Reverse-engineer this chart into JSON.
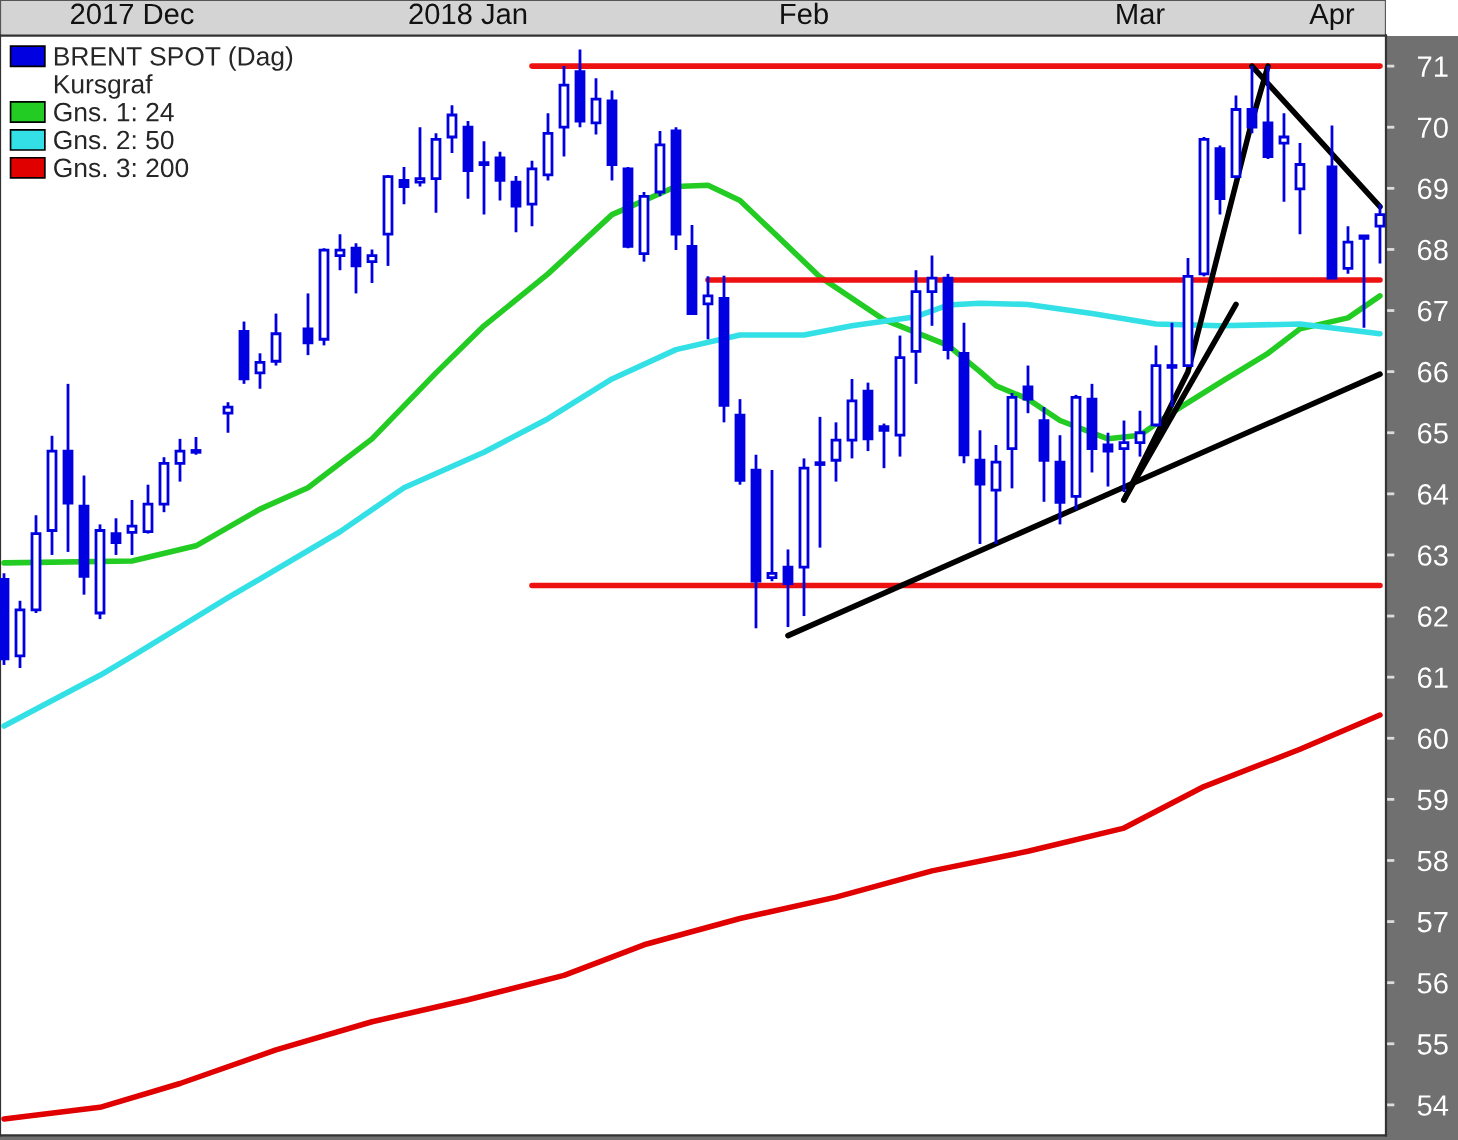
{
  "chart_data": {
    "type": "candlestick",
    "categories": [
      null,
      null,
      null,
      null,
      null,
      null,
      null,
      null,
      "2017 Dec",
      null,
      null,
      null,
      null,
      null,
      null,
      null,
      null,
      null,
      null,
      null,
      null,
      null,
      null,
      null,
      null,
      null,
      null,
      null,
      null,
      "2018 Jan",
      null,
      null,
      null,
      null,
      null,
      null,
      null,
      null,
      null,
      null,
      null,
      null,
      null,
      null,
      null,
      null,
      null,
      null,
      null,
      null,
      "Feb",
      null,
      null,
      null,
      null,
      null,
      null,
      null,
      null,
      null,
      null,
      null,
      null,
      null,
      null,
      null,
      null,
      null,
      null,
      null,
      null,
      "Mar",
      null,
      null,
      null,
      null,
      null,
      null,
      null,
      null,
      null,
      null,
      null,
      "Apr",
      null,
      null,
      null
    ],
    "ylim": [
      53.5,
      71.5
    ],
    "yticks": [
      54,
      55,
      56,
      57,
      58,
      59,
      60,
      61,
      62,
      63,
      64,
      65,
      66,
      67,
      68,
      69,
      70,
      71
    ],
    "legend": "top left",
    "legend_title": "Kursgraf",
    "line_style": "solid",
    "series": [
      {
        "name": "BRENT SPOT (Dag)",
        "color": "#0000e0",
        "ohlc": [
          [
            62.6,
            62.7,
            61.2,
            61.3
          ],
          [
            61.35,
            62.25,
            61.15,
            62.1
          ],
          [
            62.1,
            63.65,
            62.05,
            63.35
          ],
          [
            63.4,
            64.95,
            63.0,
            64.7
          ],
          [
            64.7,
            65.8,
            63.05,
            63.85
          ],
          [
            63.8,
            64.3,
            62.35,
            62.65
          ],
          [
            62.05,
            63.5,
            61.95,
            63.4
          ],
          [
            63.35,
            63.6,
            63.0,
            63.2
          ],
          [
            63.37,
            63.9,
            63.0,
            63.47
          ],
          [
            63.38,
            64.15,
            63.35,
            63.83
          ],
          [
            63.83,
            64.6,
            63.7,
            64.5
          ],
          [
            64.5,
            64.9,
            64.2,
            64.7
          ],
          [
            64.7,
            64.93,
            64.64,
            64.68
          ],
          null,
          [
            65.32,
            65.5,
            65.0,
            65.42
          ],
          [
            66.66,
            66.82,
            65.8,
            65.88
          ],
          [
            65.98,
            66.3,
            65.72,
            66.15
          ],
          [
            66.17,
            66.95,
            66.1,
            66.62
          ],
          null,
          [
            66.7,
            67.28,
            66.27,
            66.47
          ],
          [
            66.53,
            68.02,
            66.43,
            67.99
          ],
          [
            67.9,
            68.25,
            67.66,
            67.99
          ],
          [
            68.02,
            68.1,
            67.28,
            67.73
          ],
          [
            67.8,
            68.0,
            67.45,
            67.9
          ],
          [
            68.25,
            69.22,
            67.73,
            69.19
          ],
          [
            69.13,
            69.35,
            68.74,
            69.03
          ],
          [
            69.1,
            70.0,
            69.03,
            69.16
          ],
          [
            69.16,
            69.9,
            68.6,
            69.8
          ],
          [
            69.84,
            70.36,
            69.58,
            70.2
          ],
          [
            70.0,
            70.1,
            68.83,
            69.29
          ],
          [
            69.42,
            69.77,
            68.57,
            69.39
          ],
          [
            69.5,
            69.6,
            68.8,
            69.13
          ],
          [
            69.1,
            69.2,
            68.28,
            68.71
          ],
          [
            68.74,
            69.45,
            68.38,
            69.32
          ],
          [
            69.22,
            70.23,
            69.13,
            69.9
          ],
          [
            70.0,
            71.0,
            69.52,
            70.69
          ],
          [
            70.91,
            71.27,
            70.0,
            70.1
          ],
          [
            70.07,
            70.8,
            69.88,
            70.46
          ],
          [
            70.43,
            70.6,
            69.13,
            69.39
          ],
          [
            69.32,
            69.35,
            68.02,
            68.05
          ],
          [
            67.93,
            68.94,
            67.8,
            68.87
          ],
          [
            68.94,
            69.94,
            68.87,
            69.71
          ],
          [
            69.94,
            70.0,
            67.99,
            68.25
          ],
          [
            68.05,
            68.4,
            66.95,
            66.95
          ],
          [
            67.11,
            67.56,
            66.53,
            67.24
          ],
          [
            67.2,
            67.57,
            65.17,
            65.45
          ],
          [
            65.29,
            65.55,
            64.15,
            64.22
          ],
          [
            64.39,
            64.64,
            61.8,
            62.57
          ],
          [
            62.63,
            64.39,
            62.57,
            62.7
          ],
          [
            62.8,
            63.09,
            61.82,
            62.53
          ],
          [
            62.8,
            64.58,
            62.0,
            64.42
          ],
          [
            64.5,
            65.26,
            63.12,
            64.48
          ],
          [
            64.55,
            65.17,
            64.2,
            64.88
          ],
          [
            64.88,
            65.88,
            64.58,
            65.52
          ],
          [
            65.68,
            65.82,
            64.7,
            64.9
          ],
          [
            65.1,
            65.15,
            64.42,
            65.04
          ],
          [
            64.96,
            66.59,
            64.61,
            66.23
          ],
          [
            66.33,
            67.66,
            65.8,
            67.31
          ],
          [
            67.31,
            67.9,
            66.75,
            67.53
          ],
          [
            67.53,
            67.6,
            66.2,
            66.36
          ],
          [
            66.3,
            66.8,
            64.5,
            64.64
          ],
          [
            64.55,
            65.04,
            63.18,
            64.16
          ],
          [
            64.06,
            64.8,
            63.18,
            64.52
          ],
          [
            64.74,
            65.65,
            64.09,
            65.58
          ],
          [
            65.75,
            66.1,
            65.32,
            65.55
          ],
          [
            65.2,
            65.42,
            63.87,
            64.55
          ],
          [
            64.52,
            64.96,
            63.5,
            63.86
          ],
          [
            63.96,
            65.62,
            63.74,
            65.58
          ],
          [
            65.55,
            65.8,
            64.35,
            64.74
          ],
          [
            64.8,
            65.0,
            64.12,
            64.7
          ],
          [
            64.74,
            65.2,
            64.03,
            64.84
          ],
          [
            64.84,
            65.36,
            64.61,
            65.0
          ],
          [
            65.13,
            66.43,
            65.1,
            66.1
          ],
          [
            66.07,
            66.8,
            65.42,
            66.1
          ],
          [
            66.1,
            67.86,
            66.1,
            67.56
          ],
          [
            67.6,
            69.84,
            67.56,
            69.8
          ],
          [
            69.65,
            69.7,
            68.57,
            68.83
          ],
          [
            69.19,
            70.52,
            69.16,
            70.29
          ],
          [
            70.29,
            71.0,
            69.9,
            70.0
          ],
          [
            70.07,
            71.0,
            69.48,
            69.52
          ],
          [
            69.74,
            70.23,
            68.78,
            69.84
          ],
          [
            68.99,
            69.74,
            68.25,
            69.39
          ],
          null,
          [
            69.35,
            70.03,
            67.53,
            67.53
          ],
          [
            67.69,
            68.38,
            67.6,
            68.12
          ],
          [
            68.22,
            68.22,
            66.72,
            68.18
          ],
          [
            68.38,
            68.74,
            67.77,
            68.57
          ]
        ]
      },
      {
        "name": "Gns. 1: 24",
        "type": "line",
        "color": "#22cc22",
        "values": [
          62.87,
          null,
          null,
          null,
          null,
          null,
          null,
          null,
          62.9,
          null,
          null,
          null,
          63.15,
          null,
          null,
          null,
          63.75,
          null,
          null,
          64.1,
          null,
          null,
          null,
          64.9,
          null,
          null,
          null,
          65.98,
          null,
          null,
          66.75,
          null,
          null,
          null,
          67.6,
          null,
          null,
          null,
          68.57,
          null,
          null,
          null,
          69.03,
          null,
          69.05,
          null,
          68.8,
          null,
          68.3,
          null,
          null,
          67.55,
          null,
          null,
          null,
          66.85,
          null,
          null,
          null,
          66.43,
          null,
          66.0,
          65.77,
          null,
          65.55,
          null,
          65.2,
          null,
          null,
          64.9,
          null,
          64.96,
          null,
          65.33,
          null,
          null,
          65.82,
          null,
          null,
          66.3,
          null,
          66.7,
          null,
          null,
          66.88,
          null,
          67.24
        ]
      },
      {
        "name": "Gns. 2: 50",
        "type": "line",
        "color": "#33e0e6",
        "values": [
          60.2,
          null,
          null,
          null,
          null,
          null,
          61.03,
          null,
          61.34,
          null,
          null,
          null,
          null,
          null,
          62.3,
          null,
          null,
          null,
          null,
          null,
          null,
          63.38,
          null,
          null,
          null,
          64.1,
          null,
          null,
          null,
          null,
          64.68,
          null,
          null,
          null,
          65.23,
          null,
          null,
          null,
          65.88,
          null,
          null,
          null,
          66.36,
          null,
          null,
          null,
          66.6,
          null,
          null,
          null,
          66.6,
          null,
          null,
          66.75,
          null,
          null,
          null,
          66.9,
          null,
          67.09,
          null,
          67.12,
          null,
          null,
          67.1,
          null,
          null,
          null,
          66.95,
          null,
          null,
          null,
          66.78,
          null,
          null,
          null,
          66.75,
          null,
          null,
          null,
          null,
          66.78,
          null,
          null,
          null,
          null,
          66.62
        ]
      },
      {
        "name": "Gns. 3: 200",
        "type": "line",
        "color": "#e00000",
        "values": [
          53.77,
          null,
          null,
          null,
          null,
          null,
          53.96,
          null,
          null,
          null,
          null,
          54.35,
          null,
          null,
          null,
          null,
          null,
          54.9,
          null,
          null,
          null,
          null,
          null,
          55.36,
          null,
          null,
          null,
          null,
          null,
          55.72,
          null,
          null,
          null,
          null,
          null,
          56.12,
          null,
          null,
          null,
          null,
          56.62,
          null,
          null,
          null,
          null,
          null,
          57.05,
          null,
          null,
          null,
          null,
          null,
          57.4,
          null,
          null,
          null,
          null,
          null,
          57.83,
          null,
          null,
          null,
          null,
          null,
          58.15,
          null,
          null,
          null,
          null,
          null,
          58.53,
          null,
          null,
          null,
          null,
          59.21,
          null,
          null,
          null,
          null,
          null,
          59.82,
          null,
          null,
          null,
          null,
          60.38
        ]
      },
      {
        "type": "line",
        "color": "#ee1111",
        "values": [
          null,
          null,
          null,
          null,
          null,
          null,
          null,
          null,
          null,
          null,
          null,
          null,
          null,
          null,
          null,
          null,
          null,
          null,
          null,
          null,
          null,
          null,
          null,
          null,
          null,
          null,
          null,
          null,
          null,
          null,
          null,
          null,
          null,
          71,
          null,
          null,
          null,
          null,
          null,
          null,
          null,
          null,
          null,
          null,
          null,
          null,
          null,
          null,
          null,
          null,
          null,
          null,
          null,
          null,
          null,
          null,
          null,
          null,
          null,
          null,
          null,
          null,
          null,
          null,
          null,
          null,
          null,
          null,
          null,
          null,
          null,
          null,
          null,
          null,
          null,
          null,
          null,
          null,
          null,
          null,
          null,
          null,
          null,
          null,
          null,
          null,
          71
        ]
      },
      {
        "type": "line",
        "color": "#ee1111",
        "values": [
          null,
          null,
          null,
          null,
          null,
          null,
          null,
          null,
          null,
          null,
          null,
          null,
          null,
          null,
          null,
          null,
          null,
          null,
          null,
          null,
          null,
          null,
          null,
          null,
          null,
          null,
          null,
          null,
          null,
          null,
          null,
          null,
          null,
          null,
          null,
          null,
          null,
          null,
          null,
          null,
          null,
          null,
          null,
          null,
          67.5,
          null,
          null,
          null,
          null,
          null,
          null,
          null,
          null,
          null,
          null,
          null,
          null,
          null,
          null,
          null,
          null,
          null,
          null,
          null,
          null,
          null,
          null,
          null,
          null,
          null,
          null,
          null,
          null,
          null,
          null,
          null,
          null,
          null,
          null,
          null,
          null,
          null,
          null,
          null,
          null,
          null,
          67.5
        ]
      },
      {
        "type": "line",
        "color": "#ee1111",
        "values": [
          null,
          null,
          null,
          null,
          null,
          null,
          null,
          null,
          null,
          null,
          null,
          null,
          null,
          null,
          null,
          null,
          null,
          null,
          null,
          null,
          null,
          null,
          null,
          null,
          null,
          null,
          null,
          null,
          null,
          null,
          null,
          null,
          null,
          62.5,
          null,
          null,
          null,
          null,
          null,
          null,
          null,
          null,
          null,
          null,
          null,
          null,
          null,
          null,
          null,
          null,
          null,
          null,
          null,
          null,
          null,
          null,
          null,
          null,
          null,
          null,
          null,
          null,
          null,
          null,
          null,
          null,
          null,
          null,
          null,
          null,
          null,
          null,
          null,
          null,
          null,
          null,
          null,
          null,
          null,
          null,
          null,
          null,
          null,
          null,
          null,
          null,
          62.5
        ]
      },
      {
        "type": "line",
        "color": "#000000",
        "values": [
          null,
          null,
          null,
          null,
          null,
          null,
          null,
          null,
          null,
          null,
          null,
          null,
          null,
          null,
          null,
          null,
          null,
          null,
          null,
          null,
          null,
          null,
          null,
          null,
          null,
          null,
          null,
          null,
          null,
          null,
          null,
          null,
          null,
          null,
          null,
          null,
          null,
          null,
          null,
          null,
          null,
          null,
          null,
          null,
          null,
          null,
          null,
          null,
          null,
          61.68,
          null,
          null,
          null,
          null,
          null,
          null,
          null,
          null,
          null,
          null,
          null,
          null,
          null,
          null,
          null,
          null,
          null,
          null,
          null,
          null,
          null,
          null,
          null,
          null,
          null,
          null,
          null,
          null,
          null,
          null,
          null,
          null,
          null,
          null,
          null,
          null,
          65.96
        ]
      },
      {
        "type": "line",
        "color": "#000000",
        "values": [
          null,
          null,
          null,
          null,
          null,
          null,
          null,
          null,
          null,
          null,
          null,
          null,
          null,
          null,
          null,
          null,
          null,
          null,
          null,
          null,
          null,
          null,
          null,
          null,
          null,
          null,
          null,
          null,
          null,
          null,
          null,
          null,
          null,
          null,
          null,
          null,
          null,
          null,
          null,
          null,
          null,
          null,
          null,
          null,
          null,
          null,
          null,
          null,
          null,
          null,
          null,
          null,
          null,
          null,
          null,
          null,
          null,
          null,
          null,
          null,
          null,
          null,
          null,
          null,
          null,
          null,
          null,
          null,
          null,
          null,
          63.9,
          null,
          null,
          null,
          66.0,
          null,
          null,
          null,
          70.1,
          71.0,
          null,
          null,
          null,
          null,
          null,
          null,
          null
        ]
      },
      {
        "type": "line",
        "color": "#000000",
        "values": [
          null,
          null,
          null,
          null,
          null,
          null,
          null,
          null,
          null,
          null,
          null,
          null,
          null,
          null,
          null,
          null,
          null,
          null,
          null,
          null,
          null,
          null,
          null,
          null,
          null,
          null,
          null,
          null,
          null,
          null,
          null,
          null,
          null,
          null,
          null,
          null,
          null,
          null,
          null,
          null,
          null,
          null,
          null,
          null,
          null,
          null,
          null,
          null,
          null,
          null,
          null,
          null,
          null,
          null,
          null,
          null,
          null,
          null,
          null,
          null,
          null,
          null,
          null,
          null,
          null,
          null,
          null,
          null,
          null,
          null,
          63.9,
          null,
          null,
          null,
          null,
          null,
          null,
          67.1,
          null,
          null,
          null,
          null,
          null,
          null,
          null,
          null,
          null
        ]
      },
      {
        "type": "line",
        "color": "#000000",
        "values": [
          null,
          null,
          null,
          null,
          null,
          null,
          null,
          null,
          null,
          null,
          null,
          null,
          null,
          null,
          null,
          null,
          null,
          null,
          null,
          null,
          null,
          null,
          null,
          null,
          null,
          null,
          null,
          null,
          null,
          null,
          null,
          null,
          null,
          null,
          null,
          null,
          null,
          null,
          null,
          null,
          null,
          null,
          null,
          null,
          null,
          null,
          null,
          null,
          null,
          null,
          null,
          null,
          null,
          null,
          null,
          null,
          null,
          null,
          null,
          null,
          null,
          null,
          null,
          null,
          null,
          null,
          null,
          null,
          null,
          null,
          null,
          null,
          null,
          null,
          null,
          null,
          null,
          null,
          71.0,
          null,
          null,
          null,
          null,
          null,
          null,
          null,
          68.7
        ]
      }
    ]
  }
}
